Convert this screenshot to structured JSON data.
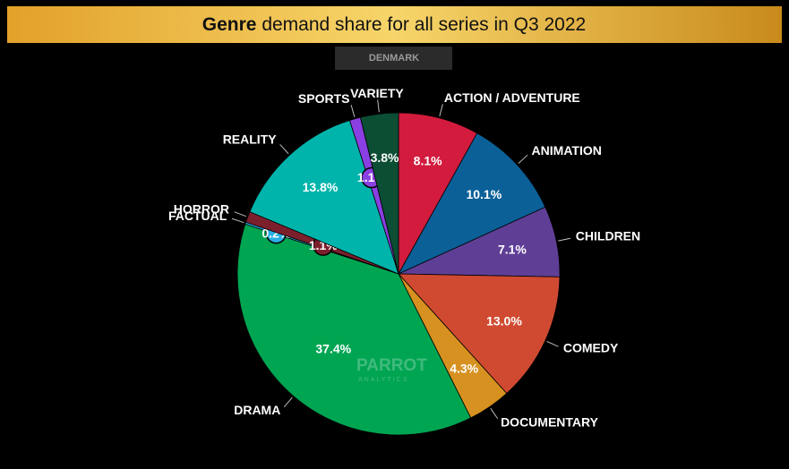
{
  "chart_data": {
    "type": "pie",
    "title_emphasis": "Genre",
    "title": "demand share for all series in Q3 2022",
    "subtitle": "DENMARK",
    "watermark": "PARROT",
    "watermark_sub": "ANALYTICS",
    "categories": [
      "ACTION / ADVENTURE",
      "ANIMATION",
      "CHILDREN",
      "COMEDY",
      "DOCUMENTARY",
      "DRAMA",
      "FACTUAL",
      "HORROR",
      "REALITY",
      "SPORTS",
      "VARIETY"
    ],
    "values": [
      8.1,
      10.1,
      7.1,
      13.0,
      4.3,
      37.4,
      0.2,
      1.1,
      13.8,
      1.1,
      3.8
    ],
    "value_labels": [
      "8.1%",
      "10.1%",
      "7.1%",
      "13.0%",
      "4.3%",
      "37.4%",
      "0.2%",
      "1.1%",
      "13.8%",
      "1.1%",
      "3.8%"
    ],
    "colors": [
      "#d21b3d",
      "#0b6098",
      "#5f3f96",
      "#d04a31",
      "#d69120",
      "#00a552",
      "#2aaee4",
      "#7c1f2d",
      "#00b4ab",
      "#8a3fe2",
      "#0b4e34"
    ]
  }
}
